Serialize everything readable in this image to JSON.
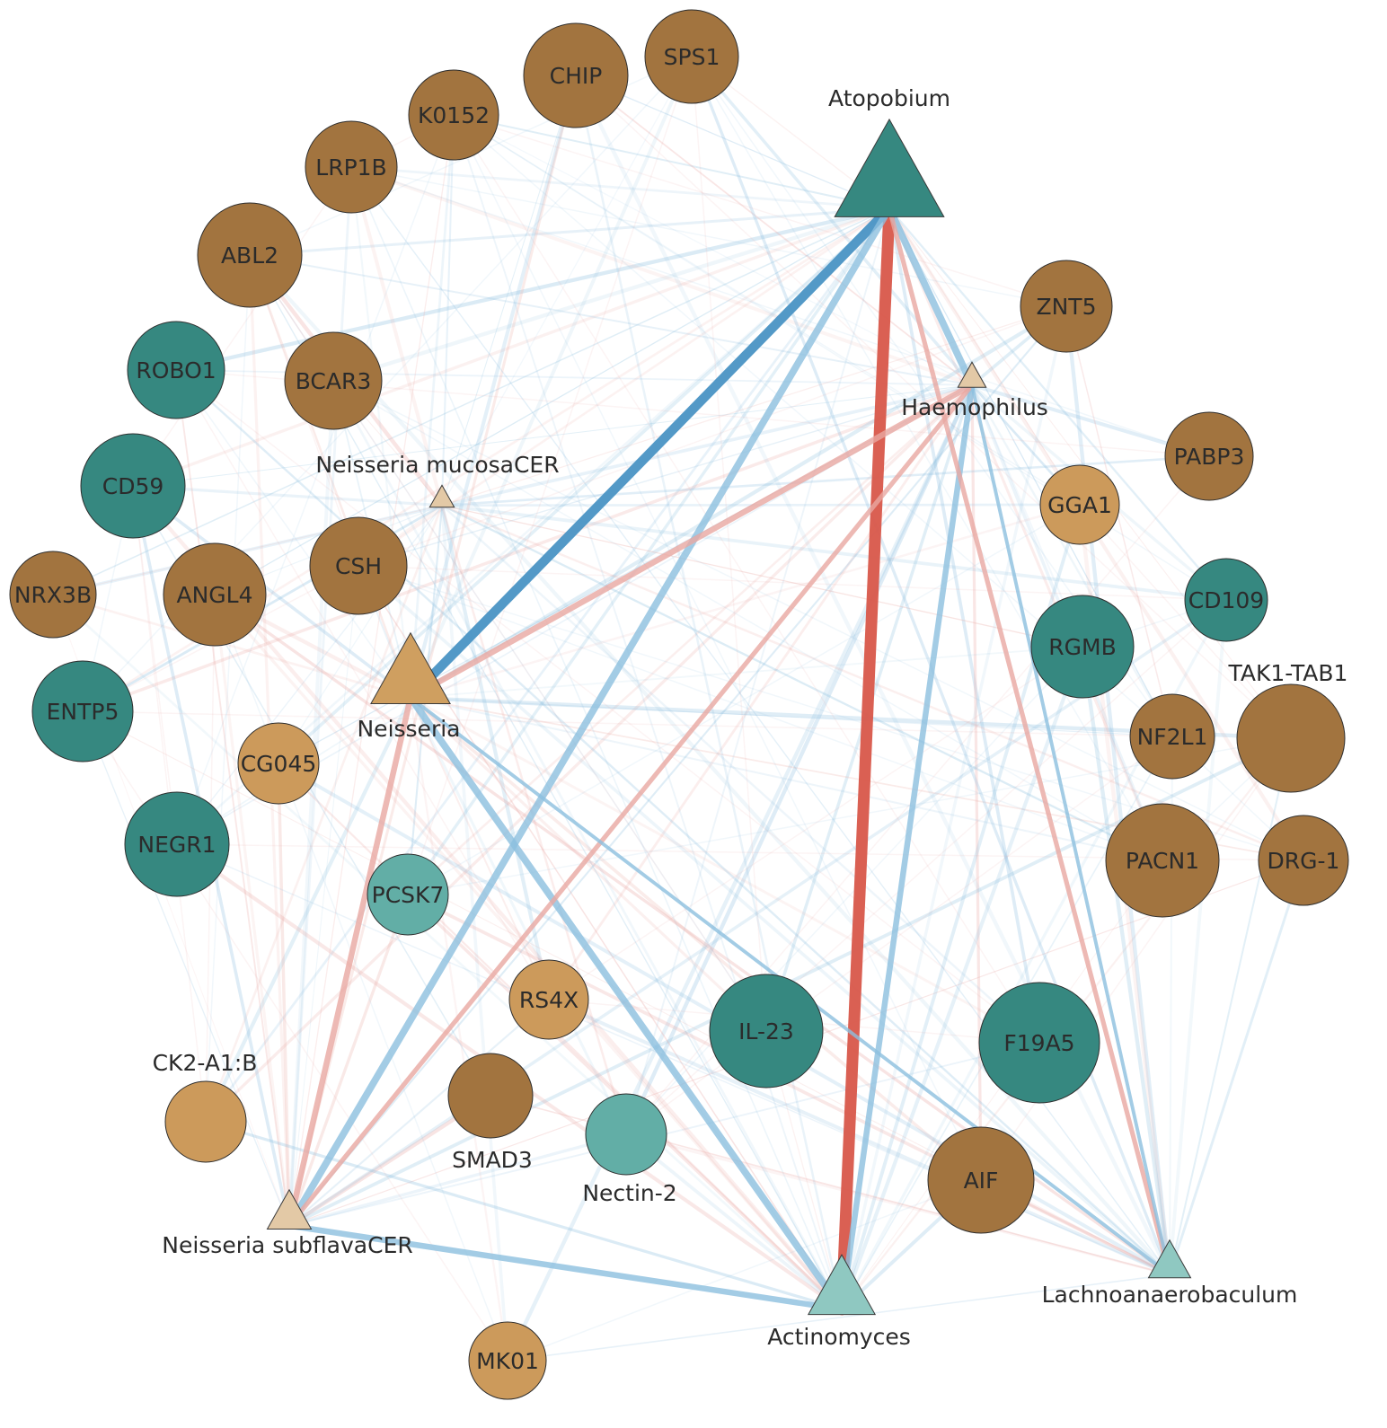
{
  "palette": {
    "dark_brown": "#a2743f",
    "light_brown": "#cc9a5b",
    "dark_teal": "#368880",
    "light_teal": "#62aea6",
    "pale_teal": "#8fc8c1",
    "pale_tan": "#e3c9a6",
    "tan": "#cf9f60",
    "edge_blue": "#4a93c4",
    "edge_blue_light": "#8cbfdf",
    "edge_red": "#d8574a",
    "edge_red_light": "#e9a7a1"
  },
  "nodes": [
    {
      "id": "atopobium",
      "label": "Atopobium",
      "shape": "triangle",
      "color": "dark_teal"
    },
    {
      "id": "haemophilus",
      "label": "Haemophilus",
      "shape": "triangle",
      "color": "pale_tan"
    },
    {
      "id": "neisseria",
      "label": "Neisseria",
      "shape": "triangle",
      "color": "tan"
    },
    {
      "id": "neisseria-mucosacer",
      "label": "Neisseria mucosaCER",
      "shape": "triangle",
      "color": "pale_tan"
    },
    {
      "id": "neisseria-subflavacer",
      "label": "Neisseria subflavaCER",
      "shape": "triangle",
      "color": "pale_tan"
    },
    {
      "id": "actinomyces",
      "label": "Actinomyces",
      "shape": "triangle",
      "color": "pale_teal"
    },
    {
      "id": "lachnoanaerobaculum",
      "label": "Lachnoanaerobaculum",
      "shape": "triangle",
      "color": "pale_teal"
    },
    {
      "id": "sps1",
      "label": "SPS1",
      "shape": "circle",
      "color": "dark_brown"
    },
    {
      "id": "chip",
      "label": "CHIP",
      "shape": "circle",
      "color": "dark_brown"
    },
    {
      "id": "k0152",
      "label": "K0152",
      "shape": "circle",
      "color": "dark_brown"
    },
    {
      "id": "lrp1b",
      "label": "LRP1B",
      "shape": "circle",
      "color": "dark_brown"
    },
    {
      "id": "abl2",
      "label": "ABL2",
      "shape": "circle",
      "color": "dark_brown"
    },
    {
      "id": "robo1",
      "label": "ROBO1",
      "shape": "circle",
      "color": "dark_teal"
    },
    {
      "id": "bcar3",
      "label": "BCAR3",
      "shape": "circle",
      "color": "dark_brown"
    },
    {
      "id": "cd59",
      "label": "CD59",
      "shape": "circle",
      "color": "dark_teal"
    },
    {
      "id": "csh",
      "label": "CSH",
      "shape": "circle",
      "color": "dark_brown"
    },
    {
      "id": "nrx3b",
      "label": "NRX3B",
      "shape": "circle",
      "color": "dark_brown"
    },
    {
      "id": "angl4",
      "label": "ANGL4",
      "shape": "circle",
      "color": "dark_brown"
    },
    {
      "id": "entp5",
      "label": "ENTP5",
      "shape": "circle",
      "color": "dark_teal"
    },
    {
      "id": "cg045",
      "label": "CG045",
      "shape": "circle",
      "color": "light_brown"
    },
    {
      "id": "negr1",
      "label": "NEGR1",
      "shape": "circle",
      "color": "dark_teal"
    },
    {
      "id": "pcsk7",
      "label": "PCSK7",
      "shape": "circle",
      "color": "light_teal"
    },
    {
      "id": "rs4x",
      "label": "RS4X",
      "shape": "circle",
      "color": "light_brown"
    },
    {
      "id": "ck2-a1b",
      "label": "CK2-A1:B",
      "shape": "circle",
      "color": "light_brown",
      "label_outside": true
    },
    {
      "id": "smad3",
      "label": "SMAD3",
      "shape": "circle",
      "color": "dark_brown",
      "label_outside": true
    },
    {
      "id": "nectin-2",
      "label": "Nectin-2",
      "shape": "circle",
      "color": "light_teal",
      "label_outside": true
    },
    {
      "id": "il-23",
      "label": "IL-23",
      "shape": "circle",
      "color": "dark_teal"
    },
    {
      "id": "f19a5",
      "label": "F19A5",
      "shape": "circle",
      "color": "dark_teal"
    },
    {
      "id": "aif",
      "label": "AIF",
      "shape": "circle",
      "color": "dark_brown"
    },
    {
      "id": "mk01",
      "label": "MK01",
      "shape": "circle",
      "color": "light_brown"
    },
    {
      "id": "znt5",
      "label": "ZNT5",
      "shape": "circle",
      "color": "dark_brown"
    },
    {
      "id": "pabp3",
      "label": "PABP3",
      "shape": "circle",
      "color": "dark_brown"
    },
    {
      "id": "gga1",
      "label": "GGA1",
      "shape": "circle",
      "color": "light_brown"
    },
    {
      "id": "cd109",
      "label": "CD109",
      "shape": "circle",
      "color": "dark_teal"
    },
    {
      "id": "rgmb",
      "label": "RGMB",
      "shape": "circle",
      "color": "dark_teal"
    },
    {
      "id": "tak1-tab1",
      "label": "TAK1-TAB1",
      "shape": "circle",
      "color": "dark_brown",
      "label_outside": true
    },
    {
      "id": "nf2l1",
      "label": "NF2L1",
      "shape": "circle",
      "color": "dark_brown"
    },
    {
      "id": "pacn1",
      "label": "PACN1",
      "shape": "circle",
      "color": "dark_brown"
    },
    {
      "id": "drg-1",
      "label": "DRG-1",
      "shape": "circle",
      "color": "dark_brown"
    }
  ],
  "strong_edges": [
    {
      "from": "atopobium",
      "to": "actinomyces",
      "sign": "positive",
      "weight": 5
    },
    {
      "from": "atopobium",
      "to": "neisseria",
      "sign": "negative",
      "weight": 4
    },
    {
      "from": "atopobium",
      "to": "neisseria-subflavacer",
      "sign": "negative",
      "weight": 3
    },
    {
      "from": "atopobium",
      "to": "haemophilus",
      "sign": "negative",
      "weight": 3
    },
    {
      "from": "neisseria",
      "to": "actinomyces",
      "sign": "negative",
      "weight": 3
    },
    {
      "from": "neisseria-subflavacer",
      "to": "actinomyces",
      "sign": "negative",
      "weight": 2.5
    },
    {
      "from": "haemophilus",
      "to": "actinomyces",
      "sign": "negative",
      "weight": 2.5
    },
    {
      "from": "neisseria",
      "to": "haemophilus",
      "sign": "positive",
      "weight": 2.5
    },
    {
      "from": "neisseria",
      "to": "neisseria-subflavacer",
      "sign": "positive",
      "weight": 2.5
    },
    {
      "from": "haemophilus",
      "to": "neisseria-subflavacer",
      "sign": "positive",
      "weight": 2
    },
    {
      "from": "atopobium",
      "to": "lachnoanaerobaculum",
      "sign": "positive",
      "weight": 2
    },
    {
      "from": "neisseria",
      "to": "lachnoanaerobaculum",
      "sign": "negative",
      "weight": 1.5
    },
    {
      "from": "haemophilus",
      "to": "lachnoanaerobaculum",
      "sign": "negative",
      "weight": 1.5
    }
  ]
}
